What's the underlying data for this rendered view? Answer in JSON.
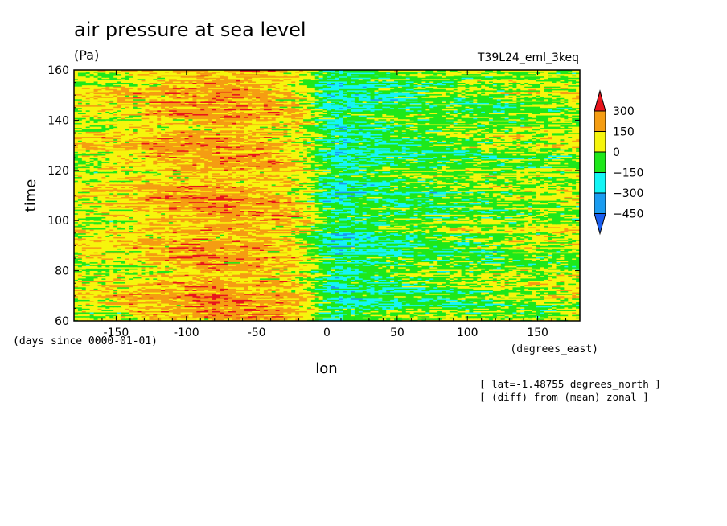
{
  "chart_data": {
    "type": "heatmap",
    "title": "air pressure at sea level",
    "subtitle": "(Pa)",
    "dataset_label": "T39L24_eml_3keq",
    "xlabel": "lon",
    "x_units": "(degrees_east)",
    "ylabel": "time",
    "y_units": "(days since 0000-01-01)",
    "xlim": [
      -180,
      180
    ],
    "ylim": [
      60,
      160
    ],
    "xticks": [
      -150,
      -100,
      -50,
      0,
      50,
      100,
      150
    ],
    "yticks": [
      60,
      80,
      100,
      120,
      140,
      160
    ],
    "colorbar": {
      "levels": [
        300,
        150,
        0,
        -150,
        -300,
        -450
      ],
      "colors": [
        "#e8141c",
        "#f59d12",
        "#f6f50d",
        "#1ee81a",
        "#14f5f5",
        "#1a9cf0",
        "#1a5ef0"
      ],
      "extend": "both"
    },
    "value_profile": {
      "description_none": "",
      "lon": [
        -180,
        -150,
        -120,
        -100,
        -80,
        -60,
        -40,
        -20,
        -10,
        0,
        10,
        30,
        60,
        90,
        120,
        150,
        180
      ],
      "value": [
        40,
        90,
        150,
        190,
        210,
        200,
        170,
        110,
        20,
        -130,
        -170,
        -120,
        -70,
        -40,
        -20,
        0,
        30
      ]
    },
    "annotations": [
      "[ lat=-1.48755 degrees_north ]",
      "[ (diff) from (mean) zonal ]"
    ]
  }
}
